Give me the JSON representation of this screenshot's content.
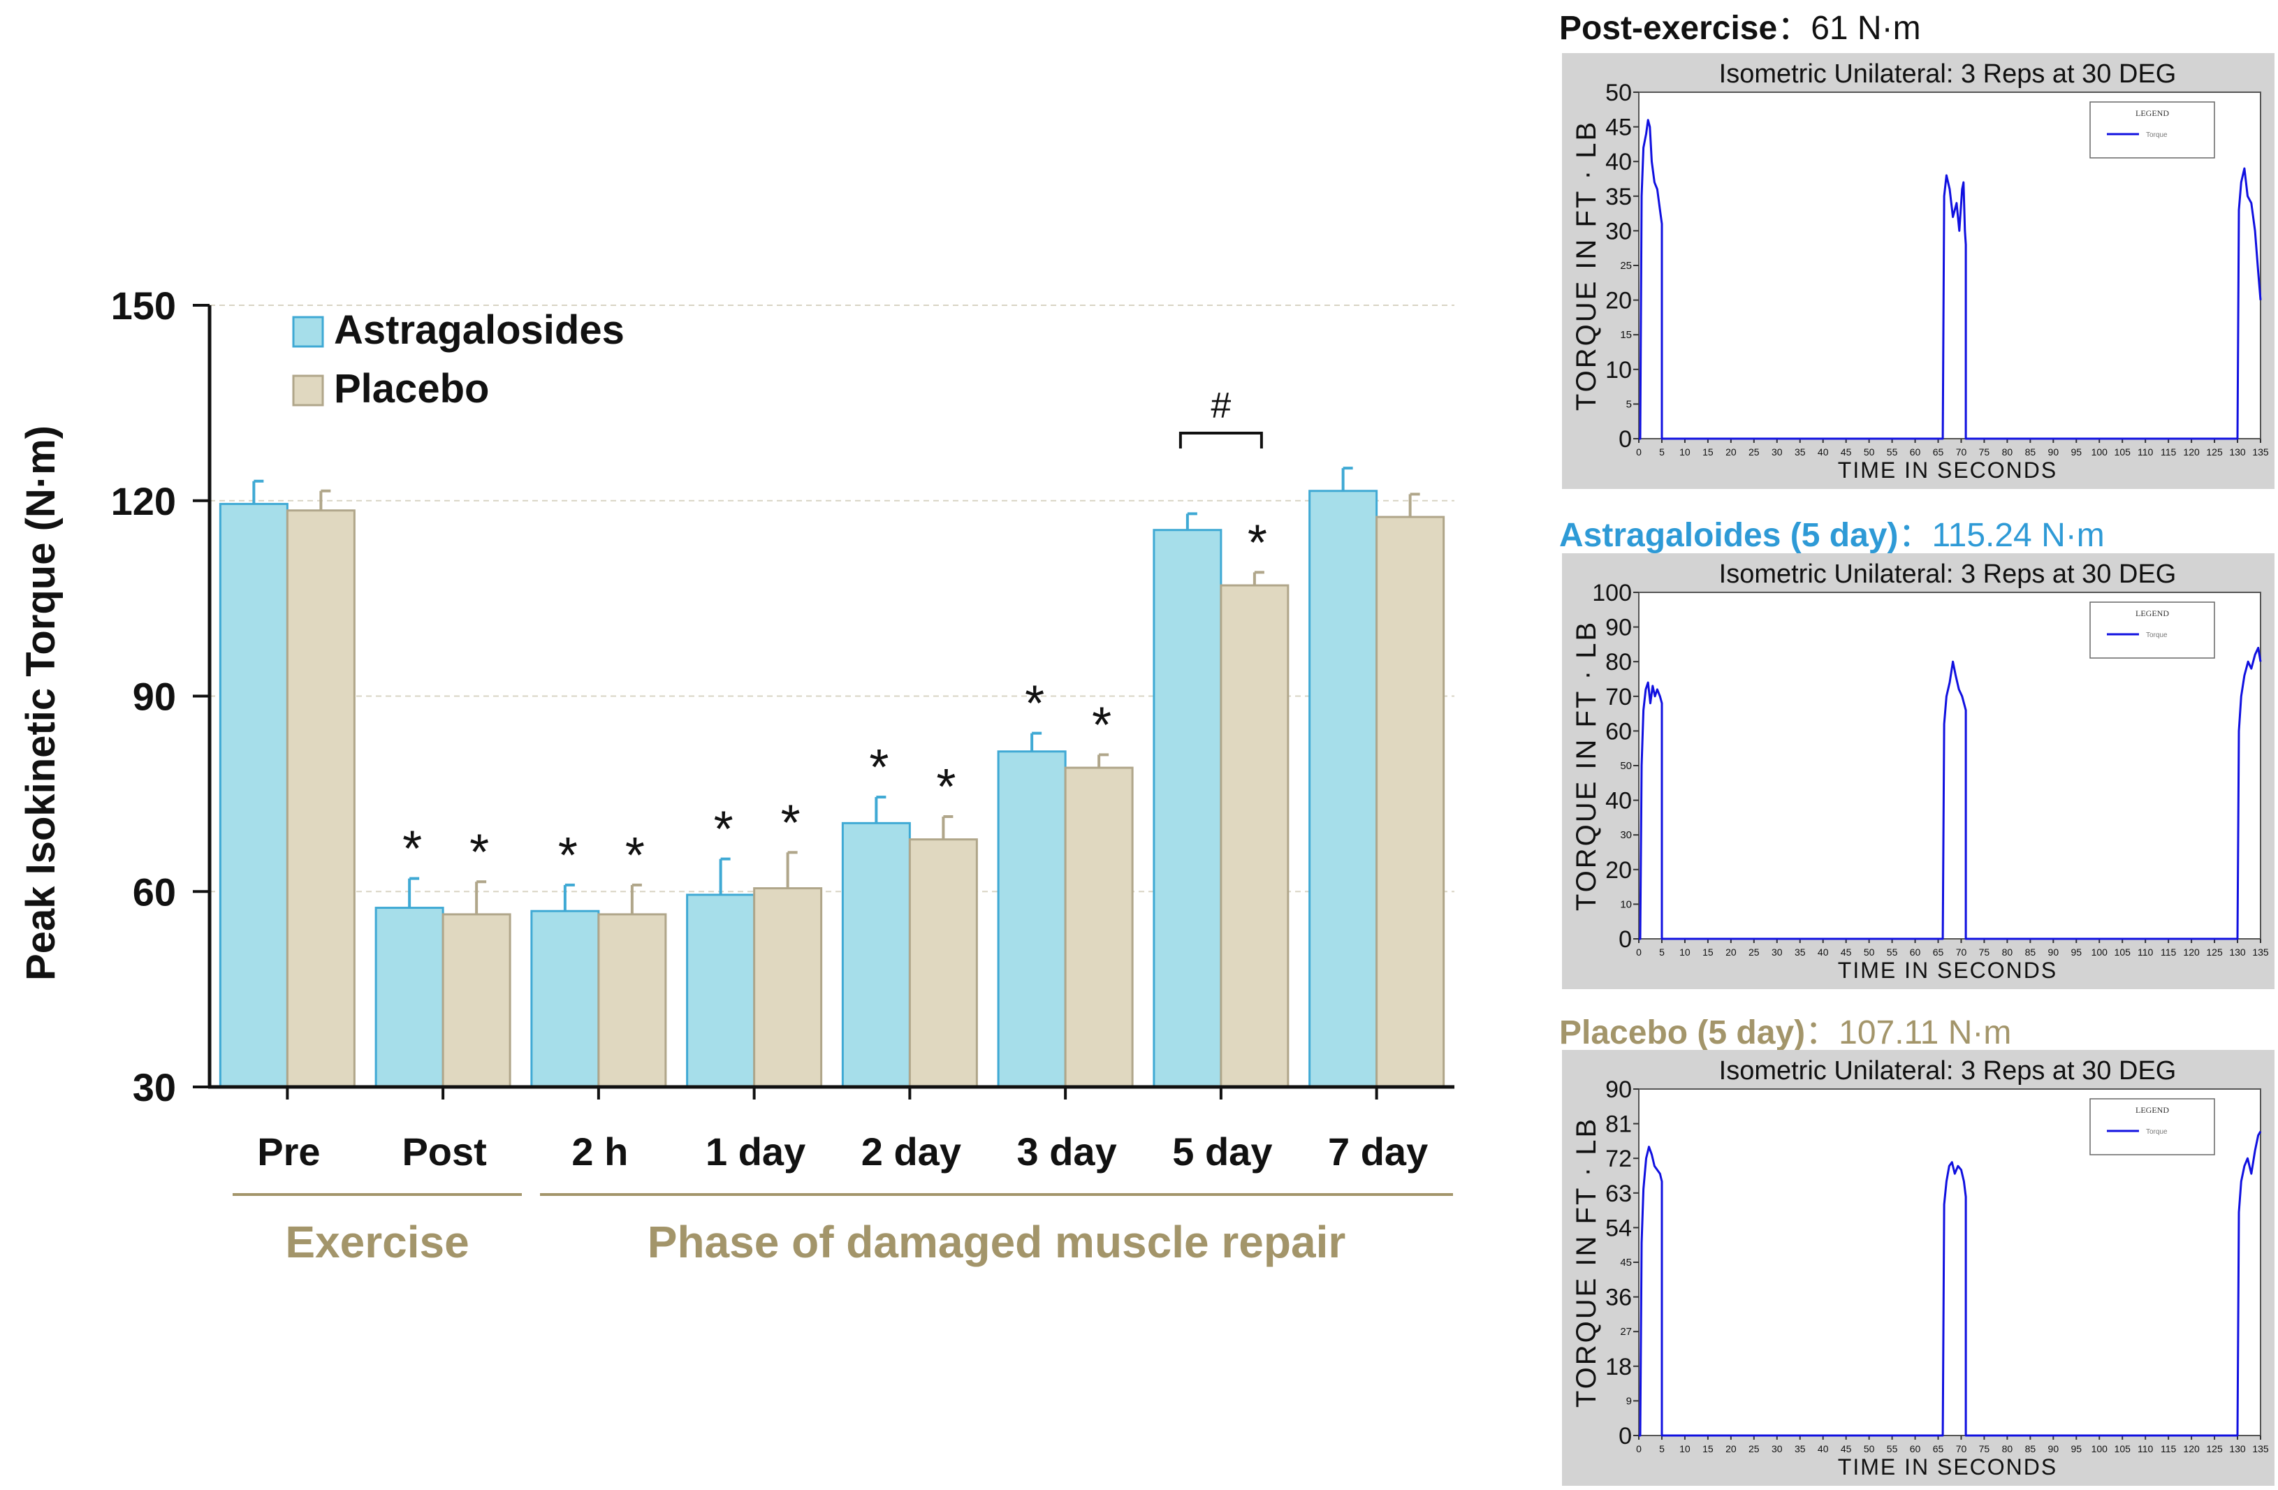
{
  "chart_data": [
    {
      "type": "bar",
      "ylabel": "Peak Isokinetic Torque (N·m)",
      "ylim": [
        30,
        150
      ],
      "yticks": [
        "30",
        "60",
        "90",
        "120",
        "150"
      ],
      "categories": [
        "Pre",
        "Post",
        "2 h",
        "1 day",
        "2 day",
        "3 day",
        "5 day",
        "7 day"
      ],
      "series": [
        {
          "name": "Astragalosides",
          "color": "#a6deea",
          "edge": "#3fa9d4",
          "values": [
            119.5,
            57.5,
            57,
            59.5,
            70.5,
            81.5,
            115.5,
            121.5
          ],
          "errors": [
            3.5,
            4.5,
            4,
            5.5,
            4,
            2.8,
            2.5,
            3.5
          ]
        },
        {
          "name": "Placebo",
          "color": "#e0d8c0",
          "edge": "#b0a68a",
          "values": [
            118.5,
            56.5,
            56.5,
            60.5,
            68,
            79,
            107,
            117.5
          ],
          "errors": [
            3,
            5,
            4.5,
            5.5,
            3.5,
            2,
            2,
            3.5
          ]
        }
      ],
      "significance": {
        "star_symbol": "*",
        "astragalosides": [
          false,
          true,
          true,
          true,
          true,
          true,
          false,
          false
        ],
        "placebo": [
          false,
          true,
          true,
          true,
          true,
          true,
          true,
          false
        ],
        "hash_symbol": "#",
        "hash_category": "5 day"
      },
      "groups": [
        {
          "label": "Exercise",
          "color": "#a3956a",
          "from": 0,
          "to": 1
        },
        {
          "label": "Phase of damaged muscle repair",
          "color": "#a3956a",
          "from": 2,
          "to": 7
        }
      ]
    },
    {
      "type": "line",
      "panel_label": "Post-exercise",
      "panel_label_color": "#111111",
      "panel_value": "：61 N·m",
      "title": "Isometric Unilateral: 3 Reps at 30 DEG",
      "xlabel": "TIME IN SECONDS",
      "ylabel": "TORQUE  IN  FT · LB",
      "legend_title": "LEGEND",
      "legend_entry": "Torque",
      "x_ticks": [
        "0",
        "5",
        "10",
        "15",
        "20",
        "25",
        "30",
        "35",
        "40",
        "45",
        "50",
        "55",
        "60",
        "65",
        "70",
        "75",
        "80",
        "85",
        "90",
        "95",
        "100",
        "105",
        "110",
        "115",
        "120",
        "125",
        "130",
        "135"
      ],
      "y_ticks": [
        "0",
        "5",
        "10",
        "15",
        "20",
        "25",
        "30",
        "35",
        "40",
        "45",
        "50"
      ],
      "ylim": [
        0,
        50
      ],
      "reps": [
        {
          "start": 0.3,
          "end": 5,
          "profile": [
            [
              0.3,
              0
            ],
            [
              0.6,
              35
            ],
            [
              1,
              42
            ],
            [
              1.6,
              44
            ],
            [
              2,
              46
            ],
            [
              2.4,
              45
            ],
            [
              2.8,
              40
            ],
            [
              3.4,
              37
            ],
            [
              4,
              36
            ],
            [
              4.6,
              33
            ],
            [
              5,
              31
            ],
            [
              5,
              0
            ]
          ]
        },
        {
          "start": 66,
          "end": 71,
          "profile": [
            [
              66,
              0
            ],
            [
              66.3,
              35
            ],
            [
              66.8,
              38
            ],
            [
              67.5,
              36
            ],
            [
              68.2,
              32
            ],
            [
              69,
              34
            ],
            [
              69.6,
              30
            ],
            [
              70.2,
              36
            ],
            [
              70.5,
              37
            ],
            [
              70.8,
              30
            ],
            [
              71,
              28
            ],
            [
              71,
              0
            ]
          ]
        },
        {
          "start": 130,
          "end": 135,
          "profile": [
            [
              130,
              0
            ],
            [
              130.3,
              33
            ],
            [
              130.8,
              37
            ],
            [
              131.5,
              39
            ],
            [
              132.2,
              35
            ],
            [
              133,
              34
            ],
            [
              133.8,
              30
            ],
            [
              134.5,
              24
            ],
            [
              135,
              20
            ]
          ]
        }
      ]
    },
    {
      "type": "line",
      "panel_label": "Astragaloides (5 day)",
      "panel_label_color": "#2e9ad6",
      "panel_value": "：115.24 N·m",
      "title": "Isometric Unilateral: 3 Reps at 30 DEG",
      "xlabel": "TIME IN SECONDS",
      "ylabel": "TORQUE  IN  FT · LB",
      "legend_title": "LEGEND",
      "legend_entry": "Torque",
      "x_ticks": [
        "0",
        "5",
        "10",
        "15",
        "20",
        "25",
        "30",
        "35",
        "40",
        "45",
        "50",
        "55",
        "60",
        "65",
        "70",
        "75",
        "80",
        "85",
        "90",
        "95",
        "100",
        "105",
        "110",
        "115",
        "120",
        "125",
        "130",
        "135"
      ],
      "y_ticks": [
        "0",
        "10",
        "20",
        "30",
        "40",
        "50",
        "60",
        "70",
        "80",
        "90",
        "100"
      ],
      "ylim": [
        0,
        100
      ],
      "reps": [
        {
          "start": 0.3,
          "end": 5,
          "profile": [
            [
              0.3,
              0
            ],
            [
              0.6,
              50
            ],
            [
              1,
              66
            ],
            [
              1.5,
              72
            ],
            [
              2,
              74
            ],
            [
              2.5,
              68
            ],
            [
              3,
              73
            ],
            [
              3.5,
              70
            ],
            [
              4,
              72
            ],
            [
              4.6,
              70
            ],
            [
              5,
              68
            ],
            [
              5,
              0
            ]
          ]
        },
        {
          "start": 66,
          "end": 71,
          "profile": [
            [
              66,
              0
            ],
            [
              66.3,
              62
            ],
            [
              66.8,
              70
            ],
            [
              67.5,
              74
            ],
            [
              68.2,
              80
            ],
            [
              68.8,
              76
            ],
            [
              69.5,
              72
            ],
            [
              70.2,
              70
            ],
            [
              71,
              66
            ],
            [
              71,
              0
            ]
          ]
        },
        {
          "start": 130,
          "end": 135,
          "profile": [
            [
              130,
              0
            ],
            [
              130.3,
              60
            ],
            [
              130.8,
              70
            ],
            [
              131.5,
              76
            ],
            [
              132.3,
              80
            ],
            [
              133,
              78
            ],
            [
              133.8,
              82
            ],
            [
              134.5,
              84
            ],
            [
              135,
              80
            ]
          ]
        }
      ]
    },
    {
      "type": "line",
      "panel_label": "Placebo (5 day)",
      "panel_label_color": "#a3956a",
      "panel_value": "：107.11 N·m",
      "title": "Isometric Unilateral: 3 Reps at 30 DEG",
      "xlabel": "TIME IN SECONDS",
      "ylabel": "TORQUE  IN  FT · LB",
      "legend_title": "LEGEND",
      "legend_entry": "Torque",
      "x_ticks": [
        "0",
        "5",
        "10",
        "15",
        "20",
        "25",
        "30",
        "35",
        "40",
        "45",
        "50",
        "55",
        "60",
        "65",
        "70",
        "75",
        "80",
        "85",
        "90",
        "95",
        "100",
        "105",
        "110",
        "115",
        "120",
        "125",
        "130",
        "135"
      ],
      "y_ticks": [
        "0",
        "9",
        "18",
        "27",
        "36",
        "45",
        "54",
        "63",
        "72",
        "81",
        "90"
      ],
      "ylim": [
        0,
        90
      ],
      "reps": [
        {
          "start": 0.3,
          "end": 5,
          "profile": [
            [
              0.3,
              0
            ],
            [
              0.6,
              50
            ],
            [
              1,
              64
            ],
            [
              1.6,
              72
            ],
            [
              2.2,
              75
            ],
            [
              2.8,
              73
            ],
            [
              3.4,
              70
            ],
            [
              4,
              69
            ],
            [
              4.6,
              68
            ],
            [
              5,
              66
            ],
            [
              5,
              0
            ]
          ]
        },
        {
          "start": 66,
          "end": 71,
          "profile": [
            [
              66,
              0
            ],
            [
              66.3,
              60
            ],
            [
              66.8,
              66
            ],
            [
              67.4,
              70
            ],
            [
              68,
              71
            ],
            [
              68.6,
              68
            ],
            [
              69.3,
              70
            ],
            [
              70,
              69
            ],
            [
              70.6,
              66
            ],
            [
              71,
              62
            ],
            [
              71,
              0
            ]
          ]
        },
        {
          "start": 130,
          "end": 135,
          "profile": [
            [
              130,
              0
            ],
            [
              130.3,
              58
            ],
            [
              130.8,
              66
            ],
            [
              131.5,
              70
            ],
            [
              132.2,
              72
            ],
            [
              133,
              68
            ],
            [
              133.8,
              74
            ],
            [
              134.5,
              78
            ],
            [
              135,
              79
            ]
          ]
        }
      ]
    }
  ]
}
